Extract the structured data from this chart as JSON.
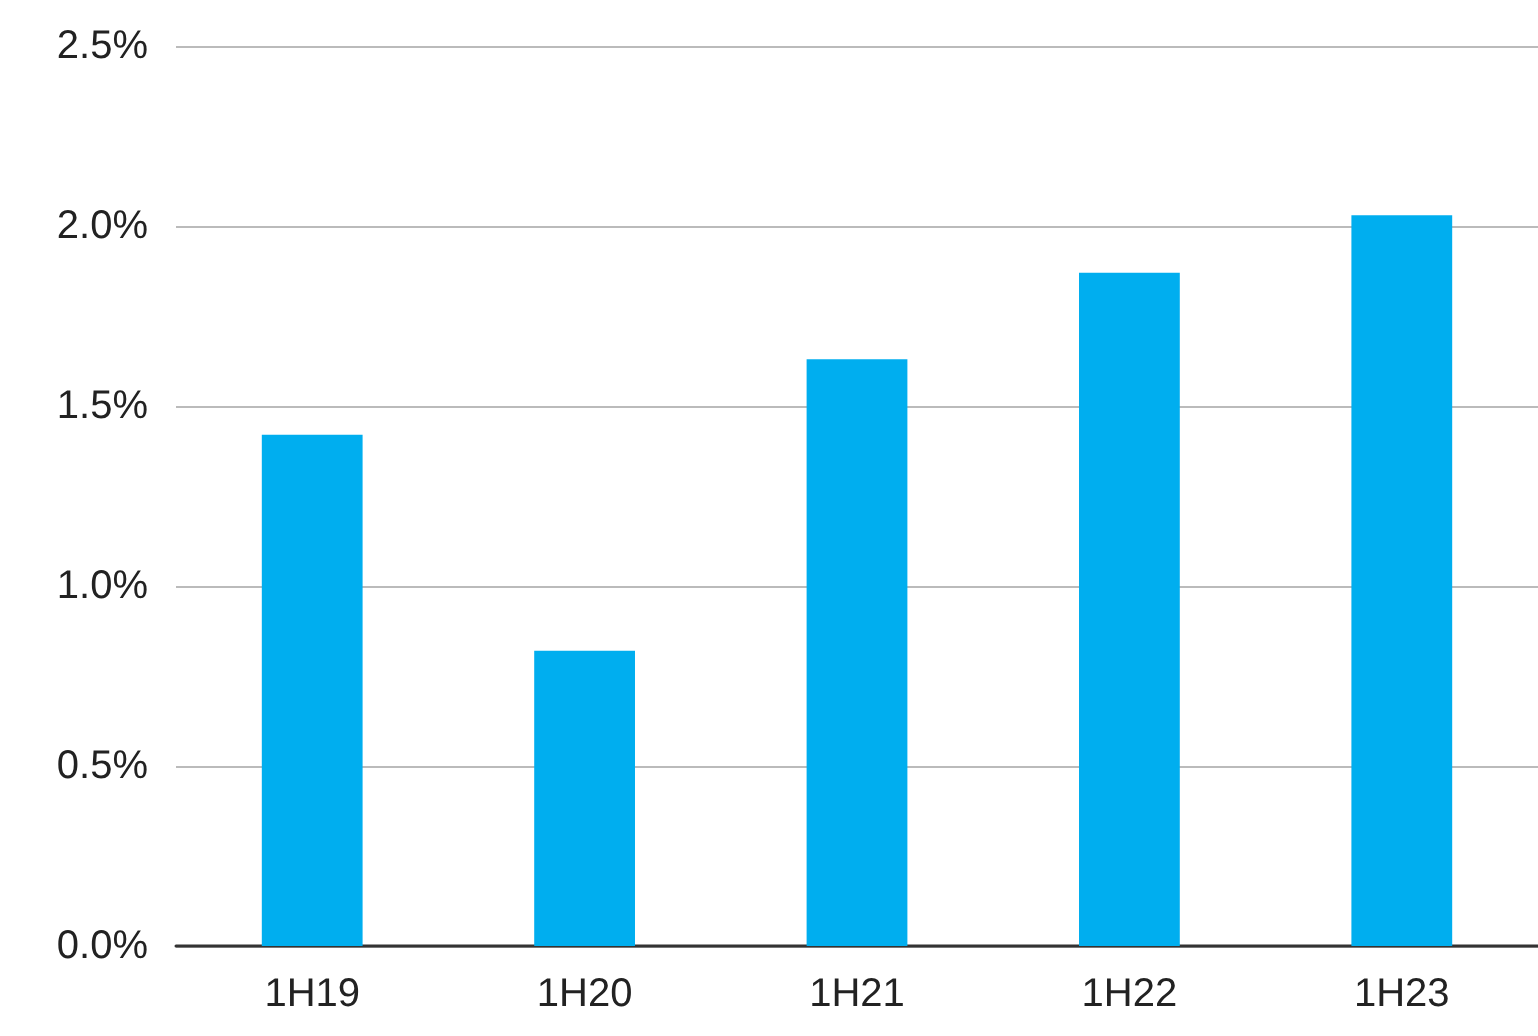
{
  "chart_data": {
    "type": "bar",
    "categories": [
      "1H19",
      "1H20",
      "1H21",
      "1H22",
      "1H23"
    ],
    "values": [
      1.42,
      0.82,
      1.63,
      1.87,
      2.03
    ],
    "color": "#00aeef",
    "ylim": [
      0,
      2.5
    ],
    "yticks": [
      {
        "value": 0,
        "label": "0.0%"
      },
      {
        "value": 0.5,
        "label": "0.5%"
      },
      {
        "value": 1,
        "label": "1.0%"
      },
      {
        "value": 1.5,
        "label": "1.5%"
      },
      {
        "value": 2,
        "label": "2.0%"
      },
      {
        "value": 2.5,
        "label": "2.5%"
      }
    ],
    "grid": "y"
  }
}
